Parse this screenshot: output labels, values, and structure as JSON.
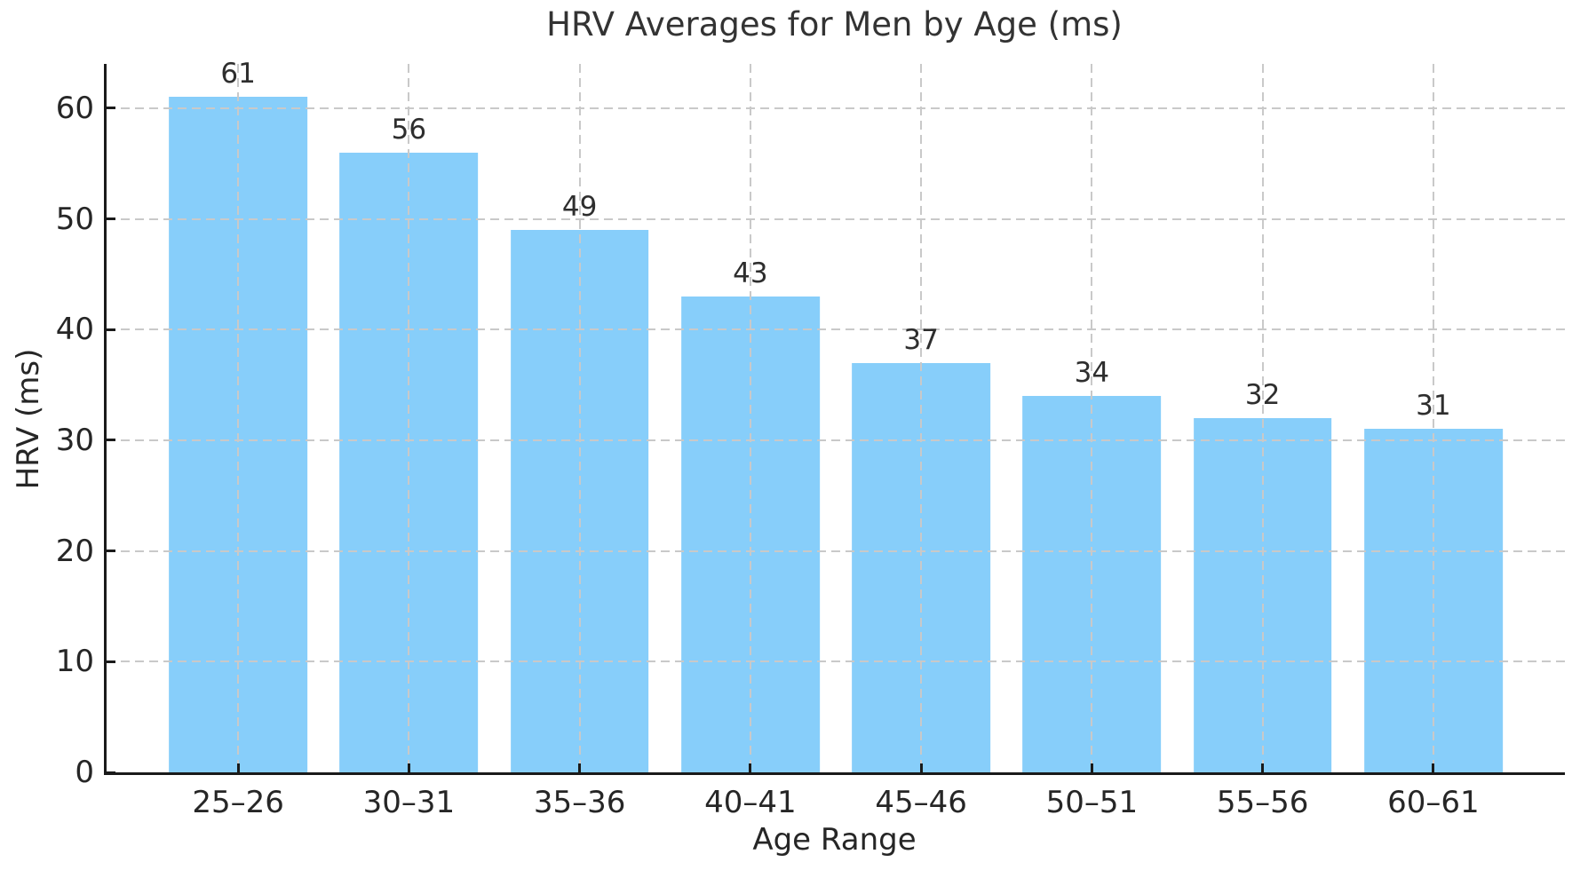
{
  "chart_data": {
    "type": "bar",
    "title": "HRV Averages for Men by Age (ms)",
    "xlabel": "Age Range",
    "ylabel": "HRV (ms)",
    "categories": [
      "25–26",
      "30–31",
      "35–36",
      "40–41",
      "45–46",
      "50–51",
      "55–56",
      "60–61"
    ],
    "values": [
      61,
      56,
      49,
      43,
      37,
      34,
      32,
      31
    ],
    "bar_labels": [
      "61",
      "56",
      "49",
      "43",
      "37",
      "34",
      "32",
      "31"
    ],
    "yticks": [
      0,
      10,
      20,
      30,
      40,
      50,
      60
    ],
    "ylim": [
      0,
      64
    ],
    "grid": "dashed",
    "legend": "none",
    "colors": {
      "bar": "#87CEFA",
      "grid": "#c9c9c9",
      "axis": "#1a1a1a",
      "text": "#262626",
      "title": "#333333",
      "background": "#ffffff"
    }
  }
}
